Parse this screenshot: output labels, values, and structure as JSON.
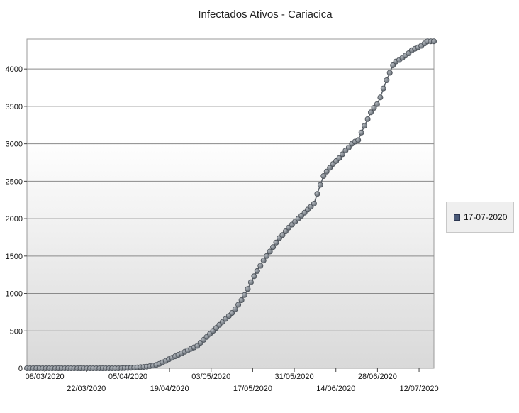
{
  "chart_data": {
    "type": "line",
    "title": "Infectados Ativos - Cariacica",
    "xlabel": "",
    "ylabel": "",
    "ylim": [
      0,
      4400
    ],
    "yticks": [
      0,
      500,
      1000,
      1500,
      2000,
      2500,
      3000,
      3500,
      4000
    ],
    "xtick_labels": [
      "08/03/2020",
      "22/03/2020",
      "05/04/2020",
      "19/04/2020",
      "03/05/2020",
      "17/05/2020",
      "31/05/2020",
      "14/06/2020",
      "28/06/2020",
      "12/07/2020"
    ],
    "x_start": "2020-03-02",
    "x_end": "2020-07-17",
    "grid": "horizontal",
    "legend_position": "right",
    "marker": "circle",
    "colors": {
      "line": "#5c636b",
      "marker": "#7e858d",
      "plot_bg_top": "#ffffff",
      "plot_bg_bottom": "#d9d9d9"
    },
    "series": [
      {
        "name": "17-07-2020",
        "values": [
          0,
          0,
          0,
          0,
          0,
          0,
          0,
          0,
          0,
          0,
          0,
          0,
          0,
          0,
          0,
          0,
          0,
          0,
          0,
          0,
          0,
          0,
          0,
          0,
          0,
          0,
          0,
          0,
          0,
          0,
          2,
          3,
          5,
          7,
          9,
          12,
          15,
          18,
          22,
          28,
          35,
          45,
          60,
          80,
          100,
          120,
          140,
          160,
          180,
          200,
          220,
          240,
          260,
          280,
          300,
          340,
          380,
          420,
          460,
          500,
          540,
          580,
          620,
          660,
          700,
          740,
          790,
          850,
          910,
          980,
          1060,
          1150,
          1230,
          1300,
          1370,
          1440,
          1500,
          1560,
          1620,
          1680,
          1740,
          1780,
          1830,
          1880,
          1920,
          1960,
          2000,
          2040,
          2080,
          2120,
          2160,
          2200,
          2330,
          2450,
          2570,
          2630,
          2680,
          2730,
          2770,
          2810,
          2860,
          2910,
          2950,
          3000,
          3030,
          3050,
          3150,
          3240,
          3330,
          3420,
          3480,
          3530,
          3620,
          3740,
          3850,
          3950,
          4050,
          4100,
          4120,
          4150,
          4180,
          4210,
          4250,
          4270,
          4290,
          4310,
          4340,
          4370,
          4370,
          4370
        ]
      }
    ]
  }
}
